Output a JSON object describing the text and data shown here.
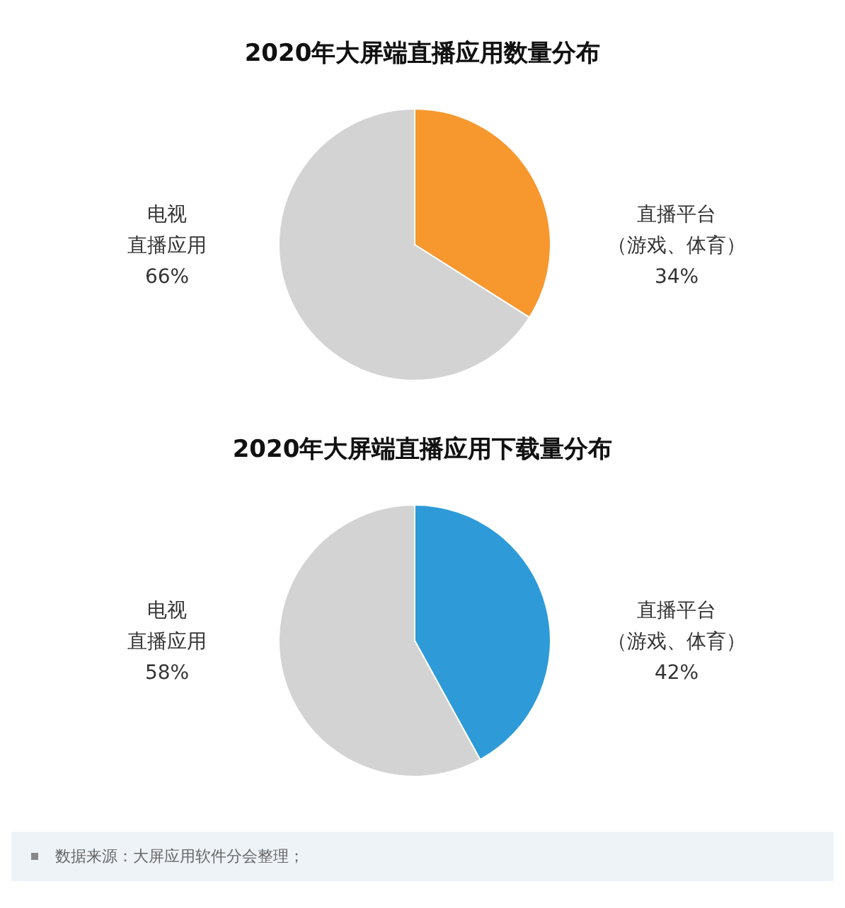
{
  "chart_data": [
    {
      "type": "pie",
      "title": "2020年大屏端直播应用数量分布",
      "categories": [
        "直播平台（游戏、体育）",
        "电视直播应用"
      ],
      "values": [
        34,
        66
      ],
      "value_labels": [
        "34%",
        "66%"
      ],
      "colors": [
        "#f7982f",
        "#d3d3d3"
      ],
      "legend": false
    },
    {
      "type": "pie",
      "title": "2020年大屏端直播应用下载量分布",
      "categories": [
        "直播平台（游戏、体育）",
        "电视直播应用"
      ],
      "values": [
        42,
        58
      ],
      "value_labels": [
        "42%",
        "58%"
      ],
      "colors": [
        "#2e9bd8",
        "#d3d3d3"
      ],
      "legend": false,
      "annotations": [
        "数据来源：大屏应用软件分会整理；"
      ]
    }
  ]
}
